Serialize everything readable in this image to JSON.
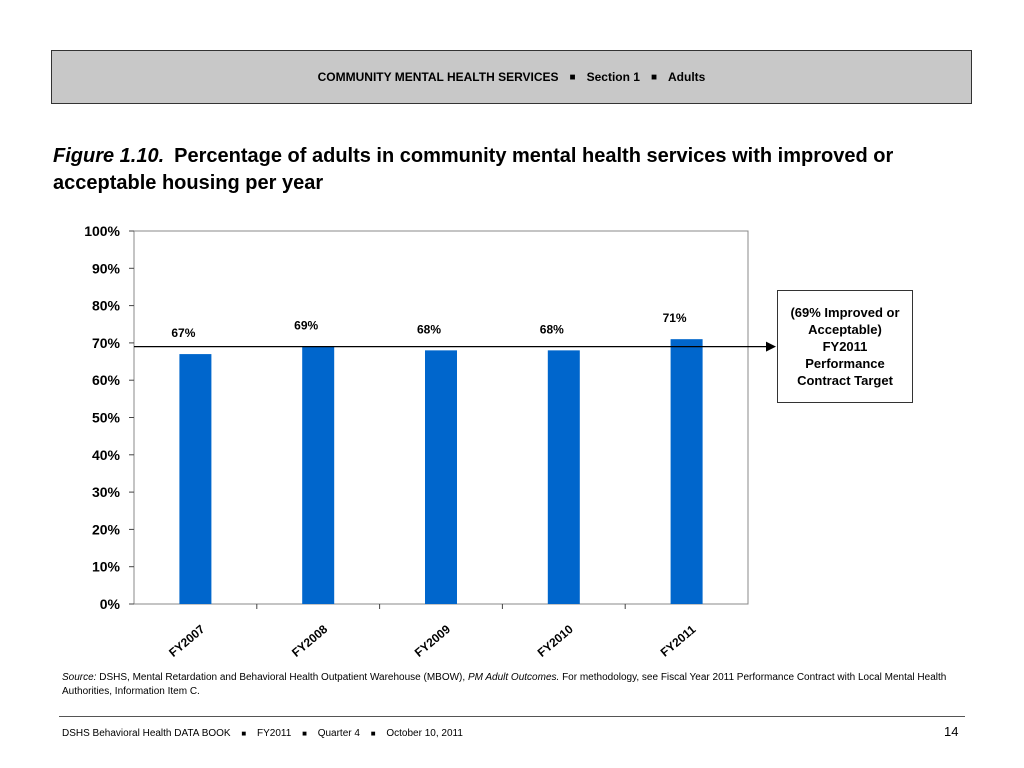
{
  "header": {
    "section_name": "COMMUNITY MENTAL HEALTH SERVICES",
    "separator": "■",
    "section_number": "Section 1",
    "audience": "Adults"
  },
  "figure": {
    "label": "Figure 1.10.",
    "title": "Percentage of adults in community mental health services with improved or acceptable housing per year"
  },
  "chart_data": {
    "type": "bar",
    "categories": [
      "FY2007",
      "FY2008",
      "FY2009",
      "FY2010",
      "FY2011"
    ],
    "values": [
      67,
      69,
      68,
      68,
      71
    ],
    "data_labels": [
      "67%",
      "69%",
      "68%",
      "68%",
      "71%"
    ],
    "ylim": [
      0,
      100
    ],
    "yticks": [
      0,
      10,
      20,
      30,
      40,
      50,
      60,
      70,
      80,
      90,
      100
    ],
    "ytick_labels": [
      "0%",
      "10%",
      "20%",
      "30%",
      "40%",
      "50%",
      "60%",
      "70%",
      "80%",
      "90%",
      "100%"
    ],
    "target_value": 69,
    "bar_color": "#0066cc",
    "legend": "none",
    "xlabel": "",
    "ylabel": ""
  },
  "target_annotation": "(69% Improved or Acceptable) FY2011 Performance Contract Target",
  "source": {
    "label": "Source:",
    "text_before": "DSHS, Mental Retardation and Behavioral Health Outpatient Warehouse (MBOW),",
    "italic_ref": "PM Adult Outcomes.",
    "text_after": "For methodology, see Fiscal Year 2011 Performance Contract with Local Mental Health Authorities, Information Item C."
  },
  "footer": {
    "publication": "DSHS Behavioral Health DATA BOOK",
    "fiscal_year": "FY2011",
    "quarter": "Quarter 4",
    "date": "October 10, 2011",
    "separator": "■",
    "page_number": "14"
  }
}
